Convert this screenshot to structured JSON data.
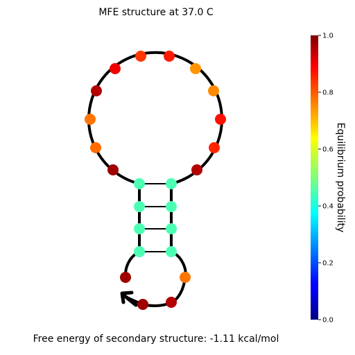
{
  "title": "MFE structure at 37.0 C",
  "footer": "Free energy of secondary structure: -1.11 kcal/mol",
  "colorbar": {
    "label": "Equilibrium probability",
    "ticks": [
      "0.0",
      "0.2",
      "0.4",
      "0.6",
      "0.8",
      "1.0"
    ],
    "colormap": "jet"
  },
  "structure": {
    "nucleotide_probabilities": [
      0.97,
      0.95,
      0.89,
      0.73,
      0.45,
      0.45,
      0.45,
      0.45,
      0.95,
      0.71,
      0.84,
      0.76,
      0.73,
      0.82,
      0.85,
      0.76,
      0.86,
      0.95,
      0.77,
      0.74,
      0.92,
      0.97,
      0.45,
      0.45,
      0.45,
      0.45
    ],
    "pairs": [
      [
        5,
        24
      ],
      [
        6,
        23
      ],
      [
        7,
        22
      ],
      [
        8,
        21
      ]
    ]
  }
}
